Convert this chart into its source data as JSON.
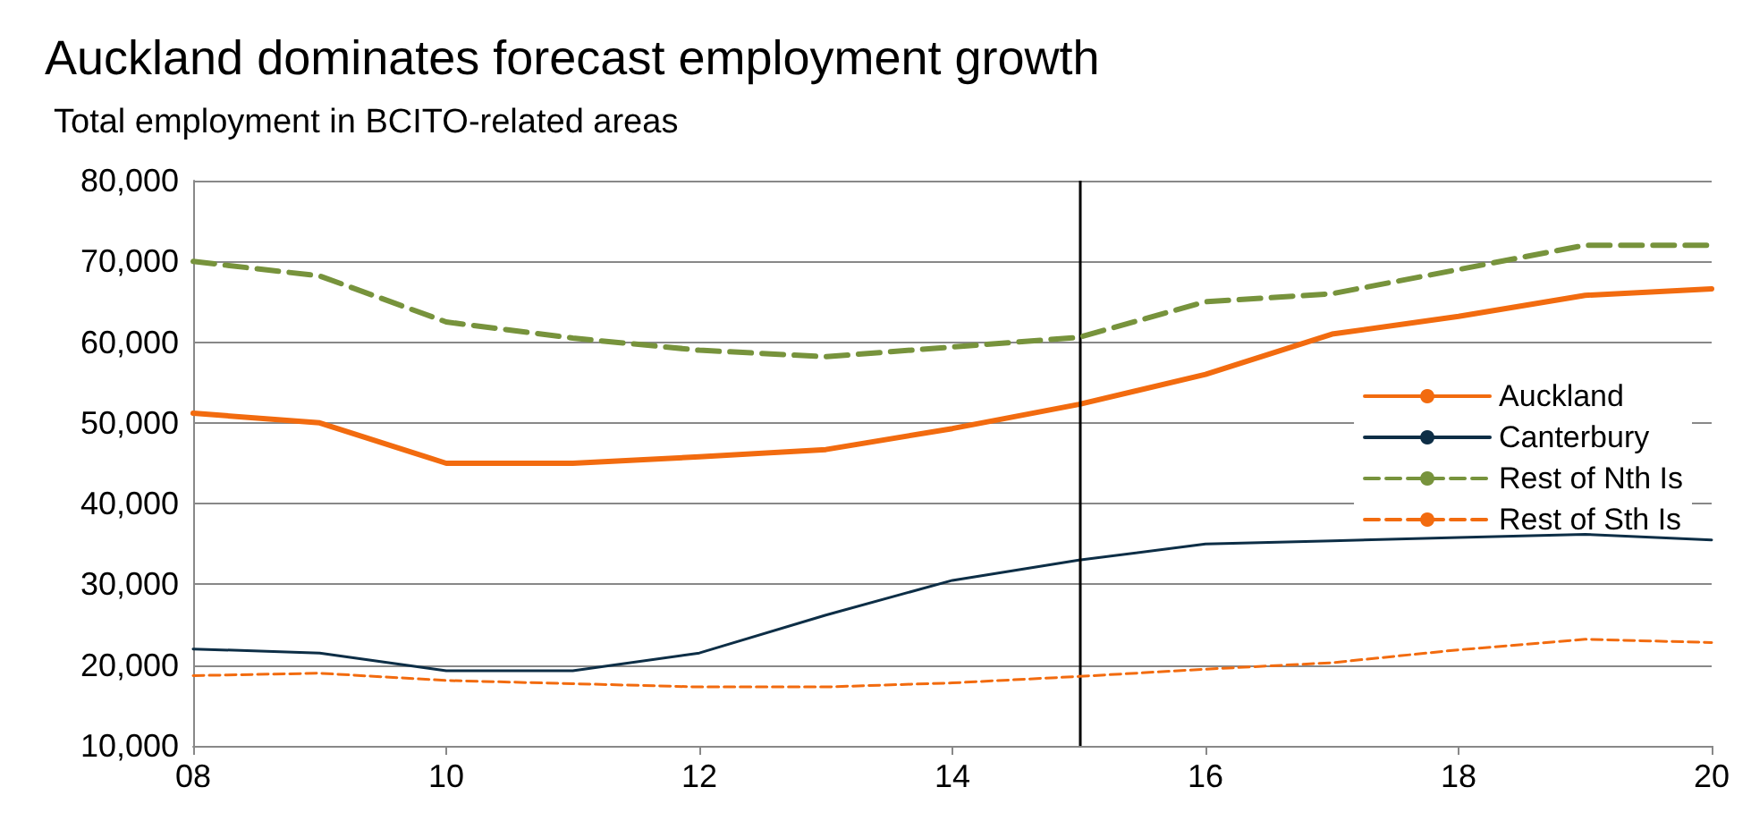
{
  "chart_data": {
    "type": "line",
    "title": "Auckland dominates forecast employment growth",
    "subtitle": "Total employment in BCITO-related areas",
    "x": [
      8,
      9,
      10,
      11,
      12,
      13,
      14,
      15,
      16,
      17,
      18,
      19,
      20
    ],
    "series": [
      {
        "name": "Auckland",
        "color": "#f26b0f",
        "line_style": "solid",
        "values": [
          51200,
          50000,
          45000,
          45000,
          45800,
          46700,
          49300,
          52300,
          56000,
          61000,
          63200,
          65800,
          66600
        ]
      },
      {
        "name": "Canterbury",
        "color": "#0d2e46",
        "line_style": "solid",
        "values": [
          22000,
          21500,
          19300,
          19300,
          21500,
          26200,
          30500,
          33000,
          35000,
          35400,
          35800,
          36200,
          35500
        ]
      },
      {
        "name": "Rest of Nth Is",
        "color": "#77933c",
        "line_style": "dashed",
        "values": [
          70000,
          68200,
          62500,
          60500,
          59000,
          58200,
          59400,
          60600,
          65000,
          66000,
          69000,
          72000,
          72000
        ]
      },
      {
        "name": "Rest of Sth Is",
        "color": "#f26b0f",
        "line_style": "dashed",
        "values": [
          18700,
          19000,
          18100,
          17700,
          17300,
          17300,
          17800,
          18600,
          19500,
          20300,
          21900,
          23200,
          22800
        ]
      }
    ],
    "xlim": [
      8,
      20
    ],
    "xticks": [
      {
        "value": 8,
        "label": "08"
      },
      {
        "value": 10,
        "label": "10"
      },
      {
        "value": 12,
        "label": "12"
      },
      {
        "value": 14,
        "label": "14"
      },
      {
        "value": 16,
        "label": "16"
      },
      {
        "value": 18,
        "label": "18"
      },
      {
        "value": 20,
        "label": "20"
      }
    ],
    "ylim": [
      10000,
      80000
    ],
    "yticks": [
      {
        "value": 10000,
        "label": "10,000"
      },
      {
        "value": 20000,
        "label": "20,000"
      },
      {
        "value": 30000,
        "label": "30,000"
      },
      {
        "value": 40000,
        "label": "40,000"
      },
      {
        "value": 50000,
        "label": "50,000"
      },
      {
        "value": 60000,
        "label": "60,000"
      },
      {
        "value": 70000,
        "label": "70,000"
      },
      {
        "value": 80000,
        "label": "80,000"
      }
    ],
    "ref_lines": [
      {
        "axis": "x",
        "value": 15,
        "color": "#000000"
      }
    ],
    "grid": "y",
    "legend": "right",
    "marker": "none"
  }
}
